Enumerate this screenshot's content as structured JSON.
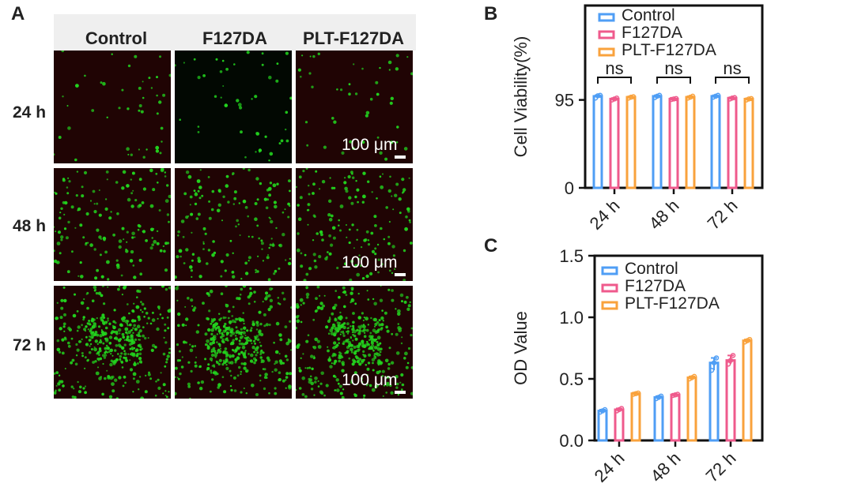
{
  "panels": {
    "a": "A",
    "b": "B",
    "c": "C"
  },
  "micrograph": {
    "columns": [
      "Control",
      "F127DA",
      "PLT-F127DA"
    ],
    "rows": [
      "24 h",
      "48 h",
      "72 h"
    ],
    "scale_bar_label": "100 μm",
    "colors": {
      "background_dark_red": "#200404",
      "background_black": "#020802",
      "cell_green": "#22d41e"
    }
  },
  "series_colors": {
    "Control": "#4f9ef5",
    "F127DA": "#ef5a8c",
    "PLT-F127DA": "#f9a23c"
  },
  "chart_data": [
    {
      "type": "bar",
      "panel": "B",
      "categories": [
        "24 h",
        "48 h",
        "72 h"
      ],
      "series": [
        {
          "name": "Control",
          "values": [
            99,
            99,
            99
          ],
          "points": [
            [
              97,
              99.5,
              100
            ],
            [
              97.5,
              99,
              100
            ],
            [
              98,
              99,
              100
            ]
          ]
        },
        {
          "name": "F127DA",
          "values": [
            96,
            96,
            97
          ],
          "points": [
            [
              95,
              96,
              97
            ],
            [
              95.5,
              96,
              96.5
            ],
            [
              96,
              97,
              97.5
            ]
          ]
        },
        {
          "name": "PLT-F127DA",
          "values": [
            98,
            98,
            96
          ],
          "points": [
            [
              97,
              98,
              98.5
            ],
            [
              97,
              98,
              99
            ],
            [
              95,
              96,
              96.5
            ]
          ]
        }
      ],
      "annotations": [
        "ns",
        "ns",
        "ns"
      ],
      "xlabel": "",
      "ylabel": "Cell Viability(%)",
      "yticks": [
        0,
        95
      ],
      "ylim": [
        0,
        197
      ],
      "legend": "top-right"
    },
    {
      "type": "bar",
      "panel": "C",
      "categories": [
        "24 h",
        "48 h",
        "72 h"
      ],
      "series": [
        {
          "name": "Control",
          "values": [
            0.24,
            0.35,
            0.63
          ],
          "points": [
            [
              0.23,
              0.24,
              0.25
            ],
            [
              0.34,
              0.35,
              0.36
            ],
            [
              0.57,
              0.63,
              0.67
            ]
          ]
        },
        {
          "name": "F127DA",
          "values": [
            0.25,
            0.37,
            0.65
          ],
          "points": [
            [
              0.24,
              0.25,
              0.26
            ],
            [
              0.365,
              0.37,
              0.375
            ],
            [
              0.62,
              0.65,
              0.69
            ]
          ]
        },
        {
          "name": "PLT-F127DA",
          "values": [
            0.38,
            0.51,
            0.81
          ],
          "points": [
            [
              0.375,
              0.38,
              0.385
            ],
            [
              0.5,
              0.51,
              0.52
            ],
            [
              0.8,
              0.81,
              0.82
            ]
          ]
        }
      ],
      "xlabel": "",
      "ylabel": "OD Value",
      "yticks": [
        0.0,
        0.5,
        1.0,
        1.5
      ],
      "ylim": [
        0,
        1.5
      ],
      "legend": "top-left"
    }
  ]
}
